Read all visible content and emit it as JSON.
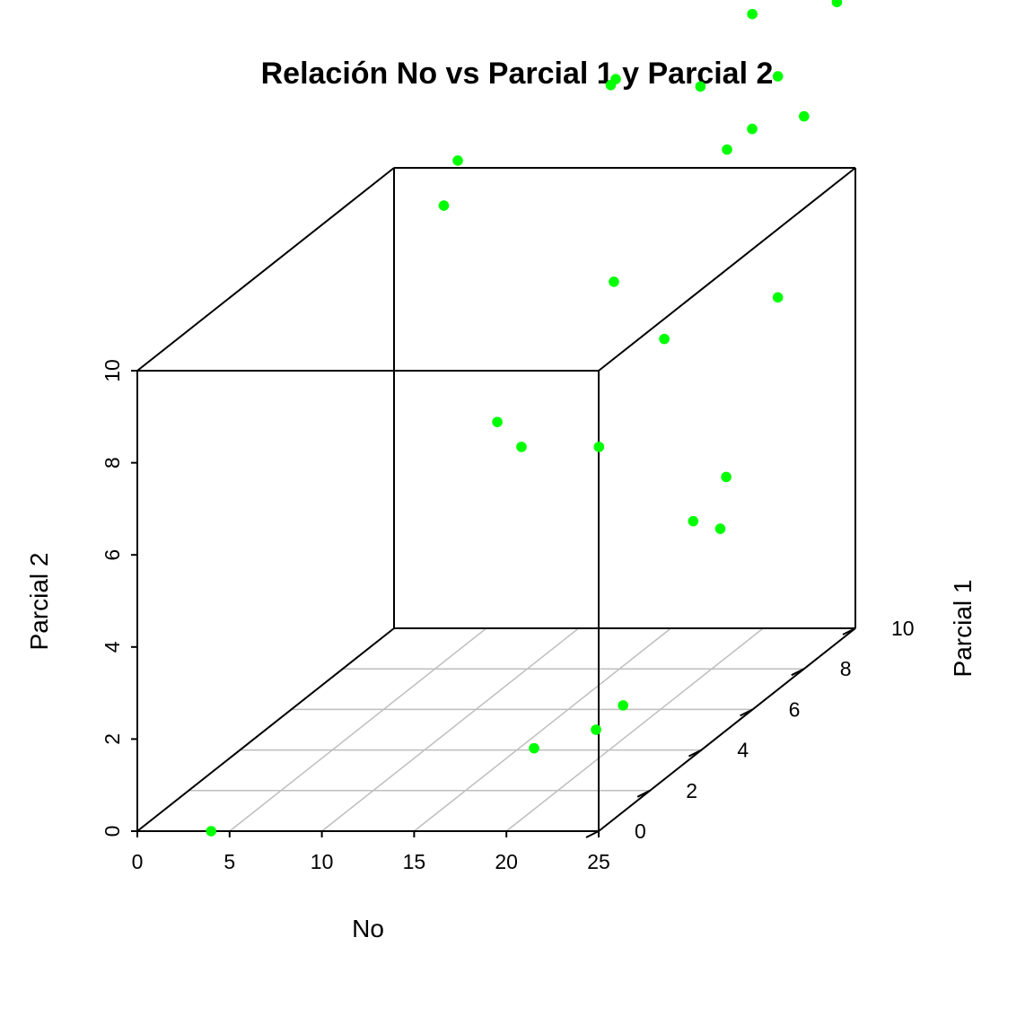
{
  "chart_data": {
    "type": "scatter",
    "title": "Relación No vs Parcial 1 y Parcial 2",
    "xlabel": "No",
    "ylabel": "Parcial 1",
    "zlabel": "Parcial 2",
    "xlim": [
      0,
      25
    ],
    "ylim": [
      0,
      10
    ],
    "zlim": [
      0,
      10
    ],
    "x_ticks": [
      "0",
      "5",
      "10",
      "15",
      "20",
      "25"
    ],
    "y_ticks": [
      "0",
      "2",
      "4",
      "6",
      "8",
      "10"
    ],
    "z_ticks": [
      "0",
      "2",
      "4",
      "6",
      "8",
      "10"
    ],
    "point_color": "#00ff00",
    "grid": "bottom-plane",
    "points": [
      {
        "x": 4.0,
        "y": 0.0,
        "z": 0.0
      },
      {
        "x": 17.7,
        "y": 6.2,
        "z": 0.0
      },
      {
        "x": 21.5,
        "y": 0.0,
        "z": 1.8
      },
      {
        "x": 21.5,
        "y": 6.2,
        "z": 4.0
      },
      {
        "x": 17.9,
        "y": 5.0,
        "z": 0.0
      },
      {
        "x": 23.8,
        "y": 5.6,
        "z": 4.1
      },
      {
        "x": 14.5,
        "y": 3.6,
        "z": 7.3
      },
      {
        "x": 17.2,
        "y": 2.6,
        "z": 7.2
      },
      {
        "x": 17.2,
        "y": 6.2,
        "z": 9.2
      },
      {
        "x": 21.2,
        "y": 7.7,
        "z": 4.3
      },
      {
        "x": 21.4,
        "y": 2.6,
        "z": 7.2
      },
      {
        "x": 24.0,
        "y": 7.7,
        "z": 8.2
      },
      {
        "x": 17.3,
        "y": 6.2,
        "z": 13.6
      },
      {
        "x": 11.6,
        "y": 3.6,
        "z": 12.0
      },
      {
        "x": 11.8,
        "y": 4.0,
        "z": 12.8
      },
      {
        "x": 25.0,
        "y": 5.0,
        "z": 12.6
      },
      {
        "x": 24.8,
        "y": 2.7,
        "z": 9.5
      },
      {
        "x": 24.0,
        "y": 7.7,
        "z": 13.0
      },
      {
        "x": 24.0,
        "y": 10.0,
        "z": 13.6
      },
      {
        "x": 21.5,
        "y": 8.5,
        "z": 14.0
      },
      {
        "x": 20.5,
        "y": 7.2,
        "z": 13.0
      },
      {
        "x": 18.7,
        "y": 5.0,
        "z": 14.0
      },
      {
        "x": 24.0,
        "y": 6.7,
        "z": 12.3
      },
      {
        "x": 25.0,
        "y": 8.0,
        "z": 12.0
      }
    ]
  }
}
